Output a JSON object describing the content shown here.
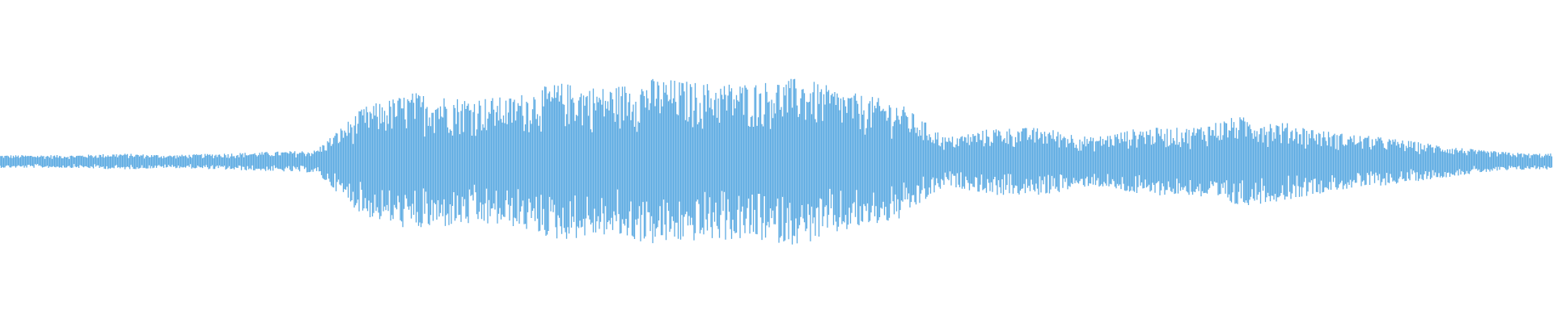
{
  "waveform": {
    "color": "#5dabe2",
    "amplitude": [
      4,
      4,
      5,
      4,
      5,
      6,
      7,
      34,
      43,
      40,
      40,
      49,
      46,
      52,
      49,
      49,
      52,
      43,
      37,
      15,
      21,
      21,
      15,
      21,
      21,
      28,
      24,
      18,
      15,
      11,
      7,
      5
    ]
  }
}
